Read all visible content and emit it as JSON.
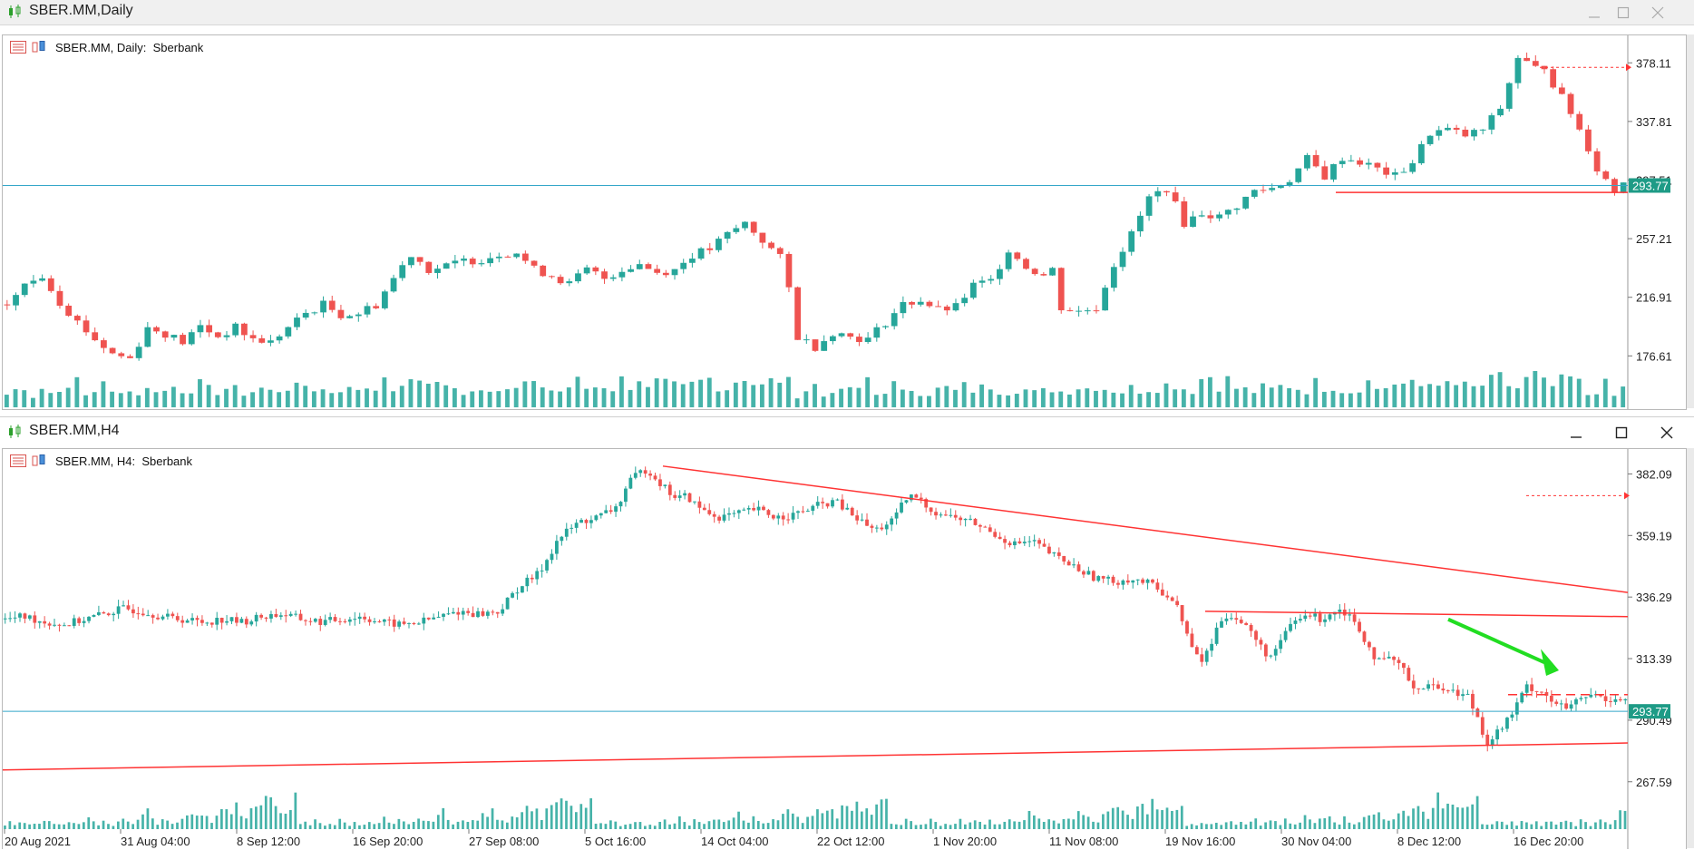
{
  "windows": [
    {
      "title": "SBER.MM,Daily",
      "chart_label": {
        "symbol": "SBER.MM, Daily:",
        "name": "Sberbank"
      }
    },
    {
      "title": "SBER.MM,H4",
      "chart_label": {
        "symbol": "SBER.MM, H4:",
        "name": "Sberbank"
      }
    }
  ],
  "colors": {
    "bull": "#26a69a",
    "bear": "#ef5350",
    "line": "#ff3333",
    "hline": "#35a7c9",
    "price_tag": "#1e9b86",
    "arrow": "#22dd22"
  },
  "chart_data": [
    {
      "type": "candlestick",
      "timeframe": "Daily",
      "y_ticks": [
        378.11,
        337.81,
        297.51,
        257.21,
        216.91,
        176.61
      ],
      "ylim": [
        145,
        392
      ],
      "current_price": "293.77",
      "price_path": [
        [
          0,
          212
        ],
        [
          2,
          225
        ],
        [
          4,
          232
        ],
        [
          6,
          214
        ],
        [
          8,
          200
        ],
        [
          10,
          188
        ],
        [
          12,
          178
        ],
        [
          14,
          175
        ],
        [
          16,
          196
        ],
        [
          18,
          192
        ],
        [
          20,
          186
        ],
        [
          22,
          197
        ],
        [
          24,
          190
        ],
        [
          26,
          196
        ],
        [
          28,
          188
        ],
        [
          30,
          186
        ],
        [
          32,
          196
        ],
        [
          34,
          206
        ],
        [
          36,
          212
        ],
        [
          38,
          205
        ],
        [
          40,
          206
        ],
        [
          42,
          212
        ],
        [
          44,
          230
        ],
        [
          46,
          247
        ],
        [
          48,
          236
        ],
        [
          50,
          238
        ],
        [
          52,
          242
        ],
        [
          54,
          243
        ],
        [
          56,
          247
        ],
        [
          58,
          248
        ],
        [
          60,
          236
        ],
        [
          62,
          232
        ],
        [
          64,
          226
        ],
        [
          66,
          236
        ],
        [
          68,
          230
        ],
        [
          70,
          236
        ],
        [
          72,
          240
        ],
        [
          74,
          234
        ],
        [
          76,
          236
        ],
        [
          78,
          246
        ],
        [
          80,
          250
        ],
        [
          82,
          260
        ],
        [
          84,
          268
        ],
        [
          86,
          256
        ],
        [
          88,
          244
        ],
        [
          89,
          223
        ],
        [
          90,
          190
        ],
        [
          92,
          183
        ],
        [
          94,
          193
        ],
        [
          96,
          190
        ],
        [
          98,
          188
        ],
        [
          100,
          200
        ],
        [
          102,
          212
        ],
        [
          104,
          215
        ],
        [
          106,
          208
        ],
        [
          108,
          210
        ],
        [
          110,
          225
        ],
        [
          112,
          228
        ],
        [
          114,
          250
        ],
        [
          116,
          238
        ],
        [
          118,
          232
        ],
        [
          119,
          236
        ],
        [
          120,
          210
        ],
        [
          122,
          207
        ],
        [
          124,
          210
        ],
        [
          126,
          240
        ],
        [
          128,
          260
        ],
        [
          130,
          285
        ],
        [
          132,
          292
        ],
        [
          134,
          268
        ],
        [
          136,
          275
        ],
        [
          138,
          272
        ],
        [
          140,
          280
        ],
        [
          142,
          290
        ],
        [
          144,
          292
        ],
        [
          146,
          298
        ],
        [
          148,
          312
        ],
        [
          150,
          300
        ],
        [
          152,
          313
        ],
        [
          154,
          310
        ],
        [
          156,
          305
        ],
        [
          158,
          300
        ],
        [
          160,
          310
        ],
        [
          162,
          330
        ],
        [
          164,
          332
        ],
        [
          166,
          328
        ],
        [
          168,
          332
        ],
        [
          170,
          347
        ],
        [
          172,
          382
        ],
        [
          174,
          374
        ],
        [
          175,
          376
        ],
        [
          176,
          364
        ],
        [
          178,
          344
        ],
        [
          180,
          320
        ],
        [
          181,
          305
        ],
        [
          182,
          298
        ],
        [
          183,
          290
        ],
        [
          184,
          298
        ]
      ],
      "bars": 185,
      "volume": [
        40,
        55,
        70,
        35,
        60,
        45,
        65,
        50,
        90,
        40,
        55,
        70,
        45,
        60,
        50,
        45,
        55,
        60,
        50,
        65,
        55,
        60,
        70,
        55,
        50,
        60,
        55,
        45,
        50,
        60,
        50,
        55,
        65,
        60,
        70,
        60,
        55,
        50,
        60,
        55,
        60,
        65,
        70,
        75,
        60,
        55,
        90,
        100,
        70,
        85,
        60,
        55,
        50,
        60,
        55,
        65,
        70,
        60,
        55,
        75,
        65,
        70,
        55,
        50,
        65,
        80,
        60,
        65,
        70,
        60,
        85,
        70,
        95,
        55,
        75,
        70,
        65,
        60,
        70,
        80,
        90,
        70,
        60,
        85,
        100,
        75,
        65,
        80,
        90,
        75
      ]
    },
    {
      "type": "candlestick",
      "timeframe": "H4",
      "y_ticks": [
        382.09,
        359.19,
        336.29,
        313.39,
        290.49,
        267.59
      ],
      "ylim": [
        253,
        390
      ],
      "current_price": "293.77",
      "x_ticks": [
        "20 Aug 2021",
        "31 Aug 04:00",
        "8 Sep 12:00",
        "16 Sep 20:00",
        "27 Sep 08:00",
        "5 Oct 16:00",
        "14 Oct 04:00",
        "22 Oct 12:00",
        "1 Nov 20:00",
        "11 Nov 08:00",
        "19 Nov 16:00",
        "30 Nov 04:00",
        "8 Dec 12:00",
        "16 Dec 20:00"
      ],
      "price_path": [
        [
          0,
          328
        ],
        [
          4,
          329
        ],
        [
          8,
          327
        ],
        [
          12,
          326
        ],
        [
          16,
          328
        ],
        [
          20,
          330
        ],
        [
          24,
          332
        ],
        [
          28,
          331
        ],
        [
          32,
          329
        ],
        [
          36,
          328
        ],
        [
          40,
          327
        ],
        [
          44,
          328
        ],
        [
          48,
          327
        ],
        [
          52,
          329
        ],
        [
          56,
          330
        ],
        [
          60,
          328
        ],
        [
          64,
          327
        ],
        [
          68,
          328
        ],
        [
          72,
          329
        ],
        [
          76,
          327
        ],
        [
          80,
          326
        ],
        [
          84,
          327
        ],
        [
          88,
          329
        ],
        [
          92,
          331
        ],
        [
          96,
          330
        ],
        [
          100,
          331
        ],
        [
          104,
          340
        ],
        [
          108,
          345
        ],
        [
          112,
          358
        ],
        [
          116,
          364
        ],
        [
          120,
          366
        ],
        [
          124,
          370
        ],
        [
          126,
          378
        ],
        [
          128,
          382
        ],
        [
          130,
          384
        ],
        [
          132,
          380
        ],
        [
          134,
          376
        ],
        [
          136,
          373
        ],
        [
          138,
          374
        ],
        [
          140,
          370
        ],
        [
          144,
          366
        ],
        [
          148,
          367
        ],
        [
          152,
          369
        ],
        [
          156,
          366
        ],
        [
          160,
          367
        ],
        [
          164,
          370
        ],
        [
          168,
          372
        ],
        [
          172,
          366
        ],
        [
          176,
          361
        ],
        [
          180,
          365
        ],
        [
          182,
          372
        ],
        [
          184,
          374
        ],
        [
          186,
          371
        ],
        [
          188,
          368
        ],
        [
          192,
          366
        ],
        [
          196,
          364
        ],
        [
          200,
          360
        ],
        [
          204,
          356
        ],
        [
          208,
          357
        ],
        [
          212,
          352
        ],
        [
          216,
          348
        ],
        [
          220,
          344
        ],
        [
          224,
          342
        ],
        [
          228,
          343
        ],
        [
          232,
          341
        ],
        [
          236,
          336
        ],
        [
          238,
          330
        ],
        [
          240,
          318
        ],
        [
          242,
          312
        ],
        [
          244,
          318
        ],
        [
          246,
          328
        ],
        [
          248,
          330
        ],
        [
          250,
          327
        ],
        [
          252,
          324
        ],
        [
          254,
          318
        ],
        [
          256,
          314
        ],
        [
          258,
          318
        ],
        [
          260,
          326
        ],
        [
          262,
          328
        ],
        [
          264,
          330
        ],
        [
          266,
          328
        ],
        [
          268,
          330
        ],
        [
          270,
          332
        ],
        [
          272,
          330
        ],
        [
          274,
          325
        ],
        [
          276,
          318
        ],
        [
          278,
          312
        ],
        [
          280,
          313
        ],
        [
          282,
          312
        ],
        [
          284,
          306
        ],
        [
          286,
          302
        ],
        [
          288,
          304
        ],
        [
          290,
          302
        ],
        [
          292,
          303
        ],
        [
          294,
          300
        ],
        [
          296,
          300
        ],
        [
          298,
          292
        ],
        [
          300,
          282
        ],
        [
          302,
          286
        ],
        [
          304,
          290
        ],
        [
          306,
          296
        ],
        [
          308,
          303
        ],
        [
          310,
          302
        ],
        [
          312,
          300
        ],
        [
          314,
          296
        ],
        [
          316,
          295
        ],
        [
          318,
          297
        ],
        [
          320,
          299
        ],
        [
          322,
          300
        ],
        [
          324,
          298
        ],
        [
          326,
          299
        ],
        [
          328,
          298
        ]
      ],
      "bars": 330,
      "volume": [
        2,
        3,
        2,
        4,
        3,
        2,
        3,
        2,
        4,
        3,
        2,
        3,
        2,
        3,
        4,
        2,
        3,
        5,
        3,
        2,
        4,
        3,
        2,
        3,
        6,
        4,
        3,
        5,
        7,
        8,
        4,
        3,
        5,
        4,
        3,
        4,
        5,
        6,
        7,
        8,
        6,
        5,
        4,
        6,
        8,
        9,
        10,
        12,
        8,
        6,
        9,
        14,
        10,
        16,
        12,
        9,
        8,
        10,
        12,
        14
      ]
    }
  ]
}
